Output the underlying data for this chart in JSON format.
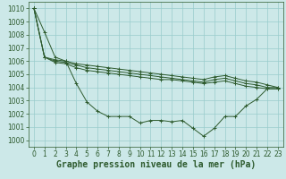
{
  "background_color": "#cce8e8",
  "grid_color": "#99cccc",
  "line_color": "#2d5a2d",
  "xlabel": "Graphe pression niveau de la mer (hPa)",
  "xlabel_fontsize": 7,
  "tick_fontsize": 5.5,
  "ylim": [
    999.5,
    1010.5
  ],
  "xlim": [
    -0.5,
    23.5
  ],
  "yticks": [
    1000,
    1001,
    1002,
    1003,
    1004,
    1005,
    1006,
    1007,
    1008,
    1009,
    1010
  ],
  "xticks": [
    0,
    1,
    2,
    3,
    4,
    5,
    6,
    7,
    8,
    9,
    10,
    11,
    12,
    13,
    14,
    15,
    16,
    17,
    18,
    19,
    20,
    21,
    22,
    23
  ],
  "series": [
    [
      1010.0,
      1008.2,
      1006.3,
      1006.0,
      1004.3,
      1002.9,
      1002.2,
      1001.8,
      1001.8,
      1001.8,
      1001.3,
      1001.5,
      1001.5,
      1001.4,
      1001.5,
      1000.9,
      1000.3,
      1000.9,
      1001.8,
      1001.8,
      1002.6,
      1003.1,
      1003.9,
      1003.9
    ],
    [
      1010.0,
      1006.3,
      1005.9,
      1005.8,
      1005.5,
      1005.3,
      1005.2,
      1005.1,
      1005.0,
      1004.9,
      1004.8,
      1004.7,
      1004.6,
      1004.6,
      1004.5,
      1004.4,
      1004.3,
      1004.4,
      1004.5,
      1004.3,
      1004.1,
      1004.0,
      1003.9,
      1003.9
    ],
    [
      1010.0,
      1006.3,
      1006.0,
      1005.9,
      1005.7,
      1005.5,
      1005.4,
      1005.3,
      1005.2,
      1005.1,
      1005.0,
      1004.9,
      1004.8,
      1004.7,
      1004.6,
      1004.5,
      1004.4,
      1004.6,
      1004.7,
      1004.5,
      1004.3,
      1004.2,
      1004.0,
      1004.0
    ],
    [
      1010.0,
      1006.3,
      1006.1,
      1006.0,
      1005.8,
      1005.7,
      1005.6,
      1005.5,
      1005.4,
      1005.3,
      1005.2,
      1005.1,
      1005.0,
      1004.9,
      1004.8,
      1004.7,
      1004.6,
      1004.8,
      1004.9,
      1004.7,
      1004.5,
      1004.4,
      1004.2,
      1004.0
    ]
  ],
  "marker": "+"
}
